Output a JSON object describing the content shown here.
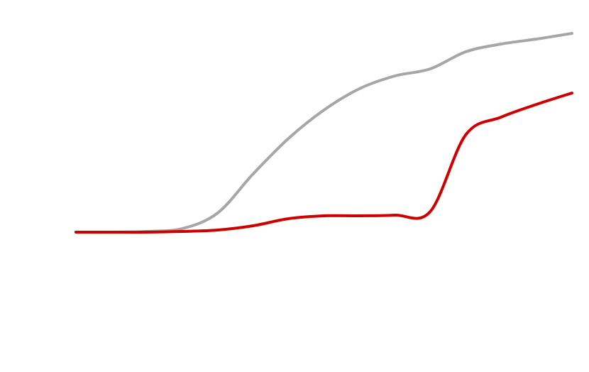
{
  "chart_data": {
    "type": "line",
    "x": [
      0,
      1,
      2,
      3,
      4,
      5,
      6,
      7,
      8,
      9,
      10,
      11,
      12,
      13,
      14
    ],
    "xlim": [
      0,
      14
    ],
    "ylim": [
      -197,
      327
    ],
    "series": [
      {
        "color": "#a6a6a6",
        "values": [
          0,
          0,
          1,
          5,
          27,
          82,
          132,
          172,
          202,
          220,
          230,
          254,
          265,
          272,
          280
        ]
      },
      {
        "color": "#d00000",
        "values": [
          0,
          0,
          0,
          1,
          3,
          9,
          19,
          23,
          23,
          24,
          29,
          137,
          162,
          180,
          196
        ]
      }
    ]
  }
}
